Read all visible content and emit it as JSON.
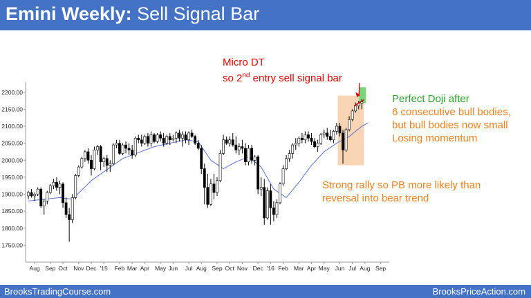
{
  "header": {
    "title_bold": "Emini Weekly:",
    "title_rest": " Sell Signal Bar"
  },
  "footer": {
    "left": "BrooksTradingCourse.com",
    "right": "BrooksPriceAction.com"
  },
  "annotations": {
    "micro_dt": "Micro DT",
    "second_entry_pre": "so 2",
    "second_entry_sup": "nd",
    "second_entry_post": " entry sell signal bar",
    "doji_line1": "Perfect Doji after",
    "doji_line2": "6 consecutive bull bodies,",
    "doji_line3": "but bull bodies now small",
    "doji_line4": "Losing momentum",
    "rally_line1": "Strong rally so PB more likely than",
    "rally_line2": "reversal into bear trend"
  },
  "colors": {
    "header": "#4472c4",
    "bull": "#ffffff",
    "bear": "#000000",
    "ma": "#5b6fd8",
    "highlight_orange": "#f9d5b5",
    "highlight_green": "#7bd67b",
    "annotation_red": "#e00000"
  },
  "chart_data": {
    "type": "candlestick",
    "title": "",
    "ylim": [
      1700,
      2230
    ],
    "yticks": [
      1750,
      1800,
      1850,
      1900,
      1950,
      2000,
      2050,
      2100,
      2150,
      2200
    ],
    "ytick_labels": [
      "1750.00",
      "1800.00",
      "1850.00",
      "1900.00",
      "1950.00",
      "2000.00",
      "2050.00",
      "2100.00",
      "2150.00",
      "2200.00"
    ],
    "xtick_labels": [
      "Aug",
      "Sep",
      "Oct",
      "Nov",
      "Dec",
      "'15",
      "Feb",
      "Mar",
      "Apr",
      "May",
      "Jun",
      "Jul",
      "Aug",
      "Sep",
      "Oct",
      "Nov",
      "Dec",
      "'16",
      "Feb",
      "Mar",
      "Apr",
      "May",
      "Jun",
      "Jul",
      "Aug",
      "Sep"
    ],
    "xtick_index": [
      2,
      7,
      11,
      16,
      20,
      24,
      29,
      33,
      37,
      42,
      46,
      51,
      55,
      60,
      64,
      68,
      73,
      77,
      81,
      86,
      90,
      94,
      99,
      103,
      107,
      112
    ],
    "candles": [
      [
        1895,
        1910,
        1885,
        1905
      ],
      [
        1905,
        1915,
        1890,
        1895
      ],
      [
        1895,
        1905,
        1880,
        1900
      ],
      [
        1900,
        1920,
        1895,
        1915
      ],
      [
        1915,
        1920,
        1860,
        1865
      ],
      [
        1865,
        1885,
        1840,
        1880
      ],
      [
        1880,
        1910,
        1870,
        1905
      ],
      [
        1905,
        1930,
        1900,
        1925
      ],
      [
        1925,
        1945,
        1915,
        1935
      ],
      [
        1935,
        1950,
        1910,
        1920
      ],
      [
        1920,
        1940,
        1900,
        1930
      ],
      [
        1930,
        1935,
        1860,
        1875
      ],
      [
        1875,
        1890,
        1830,
        1840
      ],
      [
        1840,
        1860,
        1760,
        1825
      ],
      [
        1825,
        1900,
        1815,
        1890
      ],
      [
        1890,
        1960,
        1885,
        1955
      ],
      [
        1955,
        1985,
        1950,
        1980
      ],
      [
        1980,
        2010,
        1975,
        2005
      ],
      [
        2005,
        2030,
        1995,
        2025
      ],
      [
        2025,
        2035,
        1990,
        2000
      ],
      [
        2000,
        2015,
        1955,
        1975
      ],
      [
        1975,
        2040,
        1970,
        2030
      ],
      [
        2030,
        2045,
        2015,
        2040
      ],
      [
        2040,
        2045,
        1970,
        1995
      ],
      [
        1995,
        2010,
        1980,
        2005
      ],
      [
        2005,
        2015,
        1965,
        1985
      ],
      [
        1985,
        2000,
        1965,
        1990
      ],
      [
        1990,
        2050,
        1985,
        2045
      ],
      [
        2045,
        2060,
        2035,
        2050
      ],
      [
        2050,
        2060,
        2015,
        2020
      ],
      [
        2020,
        2050,
        2015,
        2045
      ],
      [
        2045,
        2055,
        2020,
        2035
      ],
      [
        2035,
        2050,
        2015,
        2030
      ],
      [
        2030,
        2045,
        2005,
        2015
      ],
      [
        2015,
        2070,
        2010,
        2065
      ],
      [
        2065,
        2075,
        2050,
        2060
      ],
      [
        2060,
        2075,
        2040,
        2050
      ],
      [
        2050,
        2075,
        2045,
        2070
      ],
      [
        2070,
        2080,
        2040,
        2050
      ],
      [
        2050,
        2085,
        2040,
        2075
      ],
      [
        2075,
        2080,
        2050,
        2055
      ],
      [
        2055,
        2080,
        2050,
        2075
      ],
      [
        2075,
        2085,
        2055,
        2065
      ],
      [
        2065,
        2080,
        2040,
        2050
      ],
      [
        2050,
        2075,
        2045,
        2070
      ],
      [
        2070,
        2080,
        2045,
        2060
      ],
      [
        2060,
        2075,
        2055,
        2065
      ],
      [
        2065,
        2085,
        2050,
        2080
      ],
      [
        2080,
        2090,
        2055,
        2065
      ],
      [
        2065,
        2085,
        2040,
        2075
      ],
      [
        2075,
        2085,
        2050,
        2060
      ],
      [
        2060,
        2085,
        2045,
        2080
      ],
      [
        2080,
        2090,
        2065,
        2070
      ],
      [
        2070,
        2075,
        2045,
        2050
      ],
      [
        2050,
        2060,
        2030,
        2035
      ],
      [
        2035,
        2045,
        1960,
        1975
      ],
      [
        1975,
        1990,
        1870,
        1920
      ],
      [
        1920,
        1960,
        1860,
        1870
      ],
      [
        1870,
        1945,
        1865,
        1930
      ],
      [
        1930,
        1960,
        1885,
        1905
      ],
      [
        1905,
        1950,
        1895,
        1940
      ],
      [
        1940,
        2030,
        1935,
        2020
      ],
      [
        2020,
        2075,
        2015,
        2060
      ],
      [
        2060,
        2070,
        2045,
        2050
      ],
      [
        2050,
        2070,
        2040,
        2060
      ],
      [
        2060,
        2080,
        2040,
        2045
      ],
      [
        2045,
        2070,
        2020,
        2030
      ],
      [
        2030,
        2050,
        2015,
        2040
      ],
      [
        2040,
        2060,
        2020,
        2035
      ],
      [
        2035,
        2050,
        1985,
        1995
      ],
      [
        1995,
        2045,
        1985,
        2035
      ],
      [
        2035,
        2045,
        1990,
        2000
      ],
      [
        2000,
        2015,
        1985,
        2010
      ],
      [
        2010,
        2015,
        1900,
        1915
      ],
      [
        1915,
        1950,
        1895,
        1920
      ],
      [
        1920,
        1945,
        1810,
        1830
      ],
      [
        1830,
        1920,
        1825,
        1910
      ],
      [
        1910,
        1930,
        1810,
        1860
      ],
      [
        1860,
        1880,
        1820,
        1840
      ],
      [
        1840,
        1885,
        1830,
        1875
      ],
      [
        1875,
        1935,
        1870,
        1930
      ],
      [
        1930,
        1985,
        1925,
        1975
      ],
      [
        1975,
        2015,
        1970,
        2005
      ],
      [
        2005,
        2030,
        1995,
        2020
      ],
      [
        2020,
        2050,
        2005,
        2045
      ],
      [
        2045,
        2065,
        2030,
        2050
      ],
      [
        2050,
        2070,
        2040,
        2065
      ],
      [
        2065,
        2080,
        2050,
        2060
      ],
      [
        2060,
        2085,
        2050,
        2075
      ],
      [
        2075,
        2085,
        2055,
        2065
      ],
      [
        2065,
        2080,
        2045,
        2055
      ],
      [
        2055,
        2065,
        2035,
        2040
      ],
      [
        2040,
        2060,
        2025,
        2050
      ],
      [
        2050,
        2080,
        2045,
        2075
      ],
      [
        2075,
        2090,
        2065,
        2080
      ],
      [
        2080,
        2095,
        2060,
        2070
      ],
      [
        2070,
        2090,
        2055,
        2060
      ],
      [
        2060,
        2090,
        2050,
        2085
      ],
      [
        2085,
        2110,
        2075,
        2100
      ],
      [
        2100,
        2110,
        2070,
        2080
      ],
      [
        2080,
        2090,
        1990,
        2030
      ],
      [
        2030,
        2095,
        2025,
        2090
      ],
      [
        2090,
        2130,
        2085,
        2120
      ],
      [
        2120,
        2150,
        2115,
        2145
      ],
      [
        2145,
        2170,
        2140,
        2160
      ],
      [
        2160,
        2175,
        2150,
        2168
      ],
      [
        2168,
        2180,
        2150,
        2172
      ]
    ],
    "ma20": [
      [
        0,
        1880
      ],
      [
        10,
        1890
      ],
      [
        14,
        1885
      ],
      [
        20,
        1940
      ],
      [
        30,
        2005
      ],
      [
        40,
        2040
      ],
      [
        50,
        2060
      ],
      [
        54,
        2055
      ],
      [
        58,
        2000
      ],
      [
        62,
        1975
      ],
      [
        66,
        1995
      ],
      [
        70,
        2010
      ],
      [
        74,
        1980
      ],
      [
        78,
        1915
      ],
      [
        82,
        1890
      ],
      [
        86,
        1935
      ],
      [
        90,
        1985
      ],
      [
        94,
        2025
      ],
      [
        98,
        2050
      ],
      [
        102,
        2070
      ],
      [
        106,
        2100
      ],
      [
        108,
        2110
      ]
    ]
  }
}
